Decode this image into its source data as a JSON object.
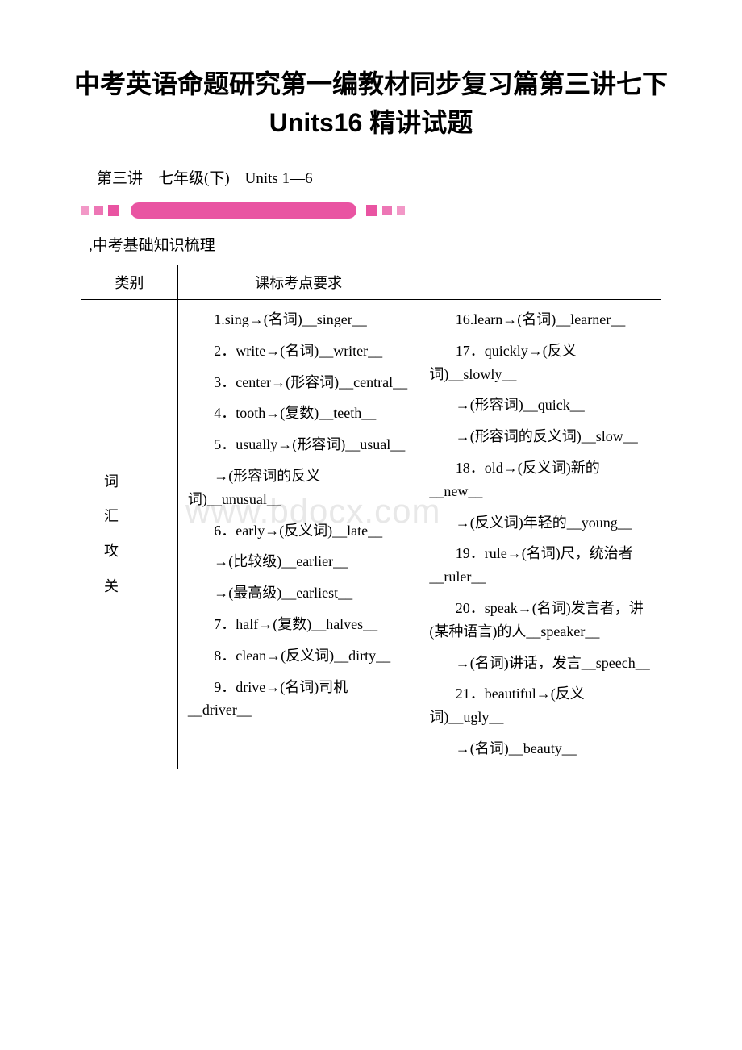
{
  "title": "中考英语命题研究第一编教材同步复习篇第三讲七下 Units16 精讲试题",
  "subtitle": "第三讲　七年级(下)　Units 1—6",
  "section_label": ",中考基础知识梳理",
  "watermark": "www.bdocx.com",
  "decoration": {
    "small_color": "#e954a2",
    "bar_color": "#e954a2"
  },
  "table": {
    "headers": [
      "类别",
      "课标考点要求",
      ""
    ],
    "category": "词\n汇\n攻\n关",
    "col2": [
      "1.sing→(名词)__singer__",
      "2．write→(名词)__writer__",
      "3．center→(形容词)__central__",
      "4．tooth→(复数)__teeth__",
      "5．usually→(形容词)__usual__",
      "→(形容词的反义词)__unusual__",
      "6．early→(反义词)__late__",
      "→(比较级)__earlier__",
      "→(最高级)__earliest__",
      "7．half→(复数)__halves__",
      "8．clean→(反义词)__dirty__",
      "9．drive→(名词)司机__driver__"
    ],
    "col3": [
      "16.learn→(名词)__learner__",
      "17．quickly→(反义词)__slowly__",
      "→(形容词)__quick__",
      "→(形容词的反义词)__slow__",
      "18．old→(反义词)新的__new__",
      "→(反义词)年轻的__young__",
      "19．rule→(名词)尺，统治者__ruler__",
      "20．speak→(名词)发言者，讲(某种语言)的人__speaker__",
      "→(名词)讲话，发言__speech__",
      "21．beautiful→(反义词)__ugly__",
      "→(名词)__beauty__"
    ]
  }
}
